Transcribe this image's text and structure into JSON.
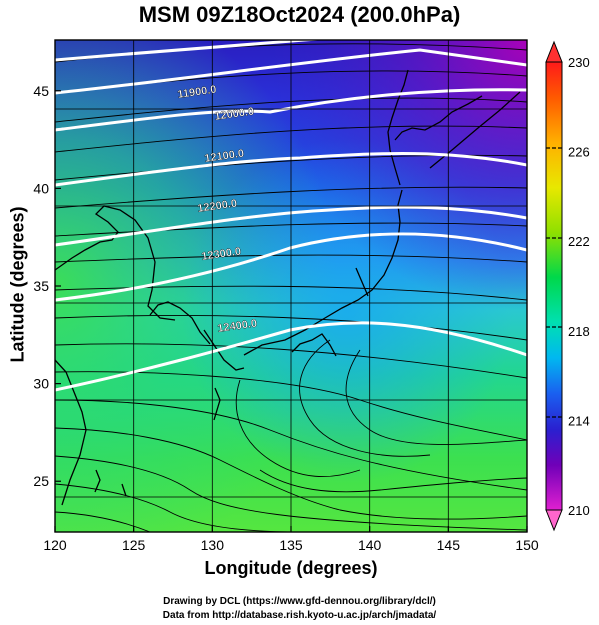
{
  "title": "MSM 09Z18Oct2024 (200.0hPa)",
  "xaxis": {
    "label": "Longitude (degrees)",
    "ticks": [
      120,
      125,
      130,
      135,
      140,
      145,
      150
    ],
    "range": [
      120,
      150
    ]
  },
  "yaxis": {
    "label": "Latitude  (degrees)",
    "ticks": [
      25,
      30,
      35,
      40,
      45
    ],
    "range": [
      22.4,
      47.6
    ]
  },
  "colorbar": {
    "ticks": [
      230,
      226,
      222,
      218,
      214,
      210
    ],
    "range": [
      210,
      230
    ],
    "colors": [
      "#ff1a1a",
      "#ff7a00",
      "#ffd400",
      "#a0e000",
      "#00d84a",
      "#00e0c8",
      "#0090f0",
      "#1a3ae0",
      "#3a10b0",
      "#c000c0",
      "#ff55cc"
    ]
  },
  "contours": [
    {
      "label": "11900.0"
    },
    {
      "label": "12000.0"
    },
    {
      "label": "12100.0"
    },
    {
      "label": "12200.0"
    },
    {
      "label": "12300.0"
    },
    {
      "label": "12400.0"
    }
  ],
  "credits": [
    "Drawing by DCL (https://www.gfd-dennou.org/library/dcl/)",
    "Data from http://database.rish.kyoto-u.ac.jp/arch/jmadata/"
  ]
}
